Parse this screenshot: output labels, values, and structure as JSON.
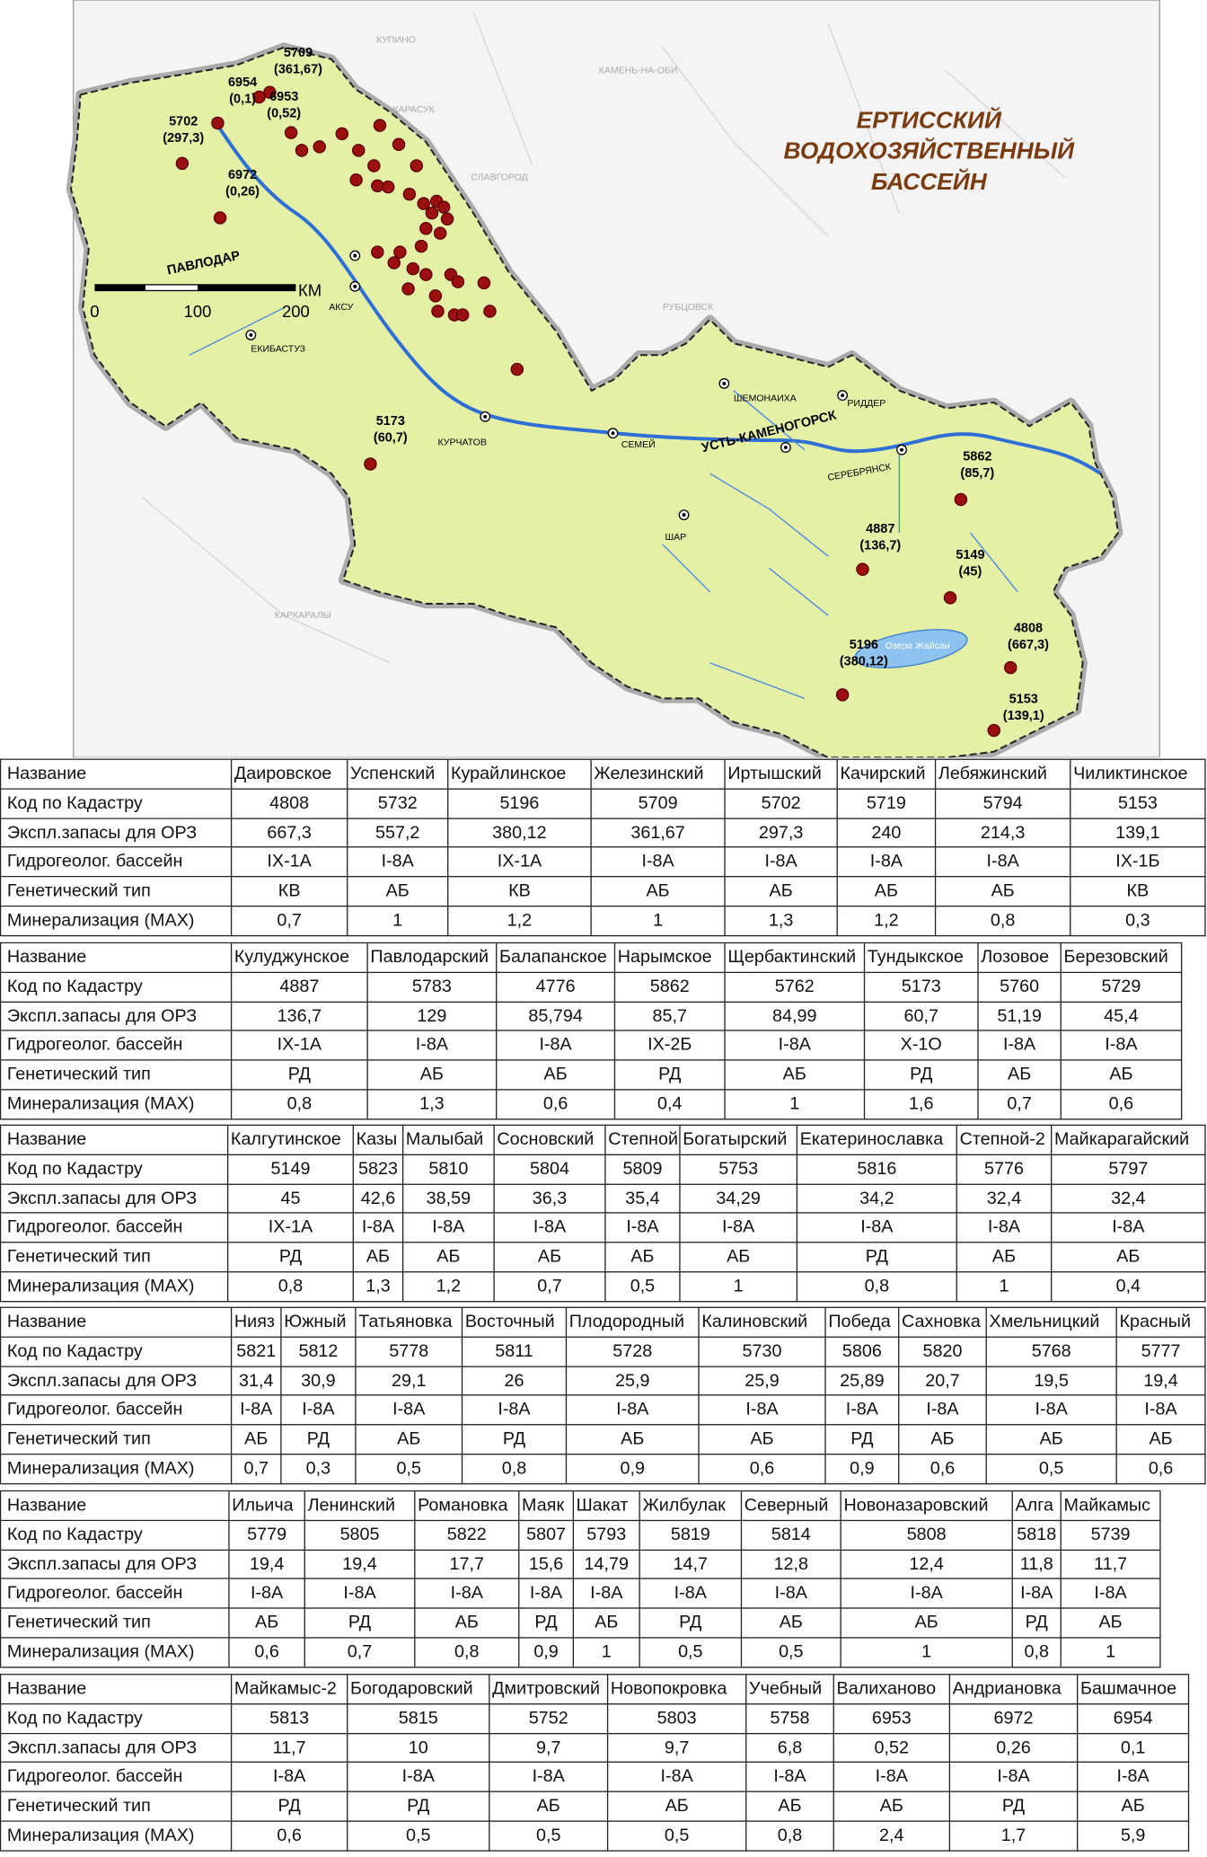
{
  "map": {
    "title": [
      "ЕРТИССКИЙ",
      "ВОДОХОЗЯЙСТВЕННЫЙ",
      "БАССЕЙН"
    ],
    "scale": {
      "ticks": [
        "0",
        "100",
        "200"
      ],
      "unit": "КМ"
    },
    "cities": [
      "ПАВЛОДАР",
      "АКСУ",
      "ЕКИБАСТУЗ",
      "КУРЧАТОВ",
      "СЕМЕЙ",
      "УСТЬ-КАМЕНОГОРСК",
      "ШАР",
      "ШЕМОНАИХА",
      "РИДДЕР",
      "СЕРЕБРЯНСК"
    ],
    "places": [
      "КУПИНО",
      "КАМЕНЬ-НА-ОБИ",
      "КАРАСУК",
      "СЛАВГОРОД",
      "РУБЦОВСК",
      "КАРКАРАЛЫ",
      "Озеро Жайсан"
    ],
    "wells": [
      {
        "code": "5709",
        "value": "(361,67)"
      },
      {
        "code": "6954",
        "value": "(0,1)"
      },
      {
        "code": "6953",
        "value": "(0,52)"
      },
      {
        "code": "5702",
        "value": "(297,3)"
      },
      {
        "code": "6972",
        "value": "(0,26)"
      },
      {
        "code": "5173",
        "value": "(60,7)"
      },
      {
        "code": "5862",
        "value": "(85,7)"
      },
      {
        "code": "4887",
        "value": "(136,7)"
      },
      {
        "code": "5149",
        "value": "(45)"
      },
      {
        "code": "4808",
        "value": "(667,3)"
      },
      {
        "code": "5196",
        "value": "(380,12)"
      },
      {
        "code": "5153",
        "value": "(139,1)"
      }
    ]
  },
  "tables": [
    {
      "rows": [
        [
          "Название",
          "Даировское",
          "Успенский",
          "Курайлинское",
          "Железинский",
          "Иртышский",
          "Качирский",
          "Лебяжинский",
          "Чиликтинское"
        ],
        [
          "Код по Кадастру",
          "4808",
          "5732",
          "5196",
          "5709",
          "5702",
          "5719",
          "5794",
          "5153"
        ],
        [
          "Экспл.запасы для ОРЗ",
          "667,3",
          "557,2",
          "380,12",
          "361,67",
          "297,3",
          "240",
          "214,3",
          "139,1"
        ],
        [
          "Гидрогеолог. бассейн",
          "IX-1А",
          "I-8А",
          "IX-1А",
          "I-8А",
          "I-8А",
          "I-8А",
          "I-8А",
          "IX-1Б"
        ],
        [
          "Генетический тип",
          "КВ",
          "АБ",
          "КВ",
          "АБ",
          "АБ",
          "АБ",
          "АБ",
          "КВ"
        ],
        [
          "Минерализация (MAX)",
          "0,7",
          "1",
          "1,2",
          "1",
          "1,3",
          "1,2",
          "0,8",
          "0,3"
        ]
      ]
    },
    {
      "rows": [
        [
          "Название",
          "Кулуджунское",
          "Павлодарский",
          "Балапанское",
          "Нарымское",
          "Щербактинский",
          "Тундыкское",
          "Лозовое",
          "Березовский"
        ],
        [
          "Код по Кадастру",
          "4887",
          "5783",
          "4776",
          "5862",
          "5762",
          "5173",
          "5760",
          "5729"
        ],
        [
          "Экспл.запасы для ОРЗ",
          "136,7",
          "129",
          "85,794",
          "85,7",
          "84,99",
          "60,7",
          "51,19",
          "45,4"
        ],
        [
          "Гидрогеолог. бассейн",
          "IX-1А",
          "I-8А",
          "I-8А",
          "IX-2Б",
          "I-8А",
          "X-1О",
          "I-8А",
          "I-8А"
        ],
        [
          "Генетический тип",
          "РД",
          "АБ",
          "АБ",
          "РД",
          "АБ",
          "РД",
          "АБ",
          "АБ"
        ],
        [
          "Минерализация (MAX)",
          "0,8",
          "1,3",
          "0,6",
          "0,4",
          "1",
          "1,6",
          "0,7",
          "0,6"
        ]
      ]
    },
    {
      "rows": [
        [
          "Название",
          "Калгутинское",
          "Казы",
          "Малыбай",
          "Сосновский",
          "Степной",
          "Богатырский",
          "Екатеринославка",
          "Степной-2",
          "Майкарагайский"
        ],
        [
          "Код по Кадастру",
          "5149",
          "5823",
          "5810",
          "5804",
          "5809",
          "5753",
          "5816",
          "5776",
          "5797"
        ],
        [
          "Экспл.запасы для ОРЗ",
          "45",
          "42,6",
          "38,59",
          "36,3",
          "35,4",
          "34,29",
          "34,2",
          "32,4",
          "32,4"
        ],
        [
          "Гидрогеолог. бассейн",
          "IX-1А",
          "I-8А",
          "I-8А",
          "I-8А",
          "I-8А",
          "I-8А",
          "I-8А",
          "I-8А",
          "I-8А"
        ],
        [
          "Генетический тип",
          "РД",
          "АБ",
          "АБ",
          "АБ",
          "АБ",
          "АБ",
          "РД",
          "АБ",
          "АБ"
        ],
        [
          "Минерализация (MAX)",
          "0,8",
          "1,3",
          "1,2",
          "0,7",
          "0,5",
          "1",
          "0,8",
          "1",
          "0,4"
        ]
      ]
    },
    {
      "rows": [
        [
          "Название",
          "Нияз",
          "Южный",
          "Татьяновка",
          "Восточный",
          "Плодородный",
          "Калиновский",
          "Победа",
          "Сахновка",
          "Хмельницкий",
          "Красный"
        ],
        [
          "Код по Кадастру",
          "5821",
          "5812",
          "5778",
          "5811",
          "5728",
          "5730",
          "5806",
          "5820",
          "5768",
          "5777"
        ],
        [
          "Экспл.запасы для ОРЗ",
          "31,4",
          "30,9",
          "29,1",
          "26",
          "25,9",
          "25,9",
          "25,89",
          "20,7",
          "19,5",
          "19,4"
        ],
        [
          "Гидрогеолог. бассейн",
          "I-8А",
          "I-8А",
          "I-8А",
          "I-8А",
          "I-8А",
          "I-8А",
          "I-8А",
          "I-8А",
          "I-8А",
          "I-8А"
        ],
        [
          "Генетический тип",
          "АБ",
          "РД",
          "АБ",
          "РД",
          "АБ",
          "АБ",
          "РД",
          "АБ",
          "АБ",
          "АБ"
        ],
        [
          "Минерализация (MAX)",
          "0,7",
          "0,3",
          "0,5",
          "0,8",
          "0,9",
          "0,6",
          "0,9",
          "0,6",
          "0,5",
          "0,6"
        ]
      ]
    },
    {
      "rows": [
        [
          "Название",
          "Ильича",
          "Ленинский",
          "Романовка",
          "Маяк",
          "Шакат",
          "Жилбулак",
          "Северный",
          "Новоназаровский",
          "Алга",
          "Майкамыс"
        ],
        [
          "Код по Кадастру",
          "5779",
          "5805",
          "5822",
          "5807",
          "5793",
          "5819",
          "5814",
          "5808",
          "5818",
          "5739"
        ],
        [
          "Экспл.запасы для ОРЗ",
          "19,4",
          "19,4",
          "17,7",
          "15,6",
          "14,79",
          "14,7",
          "12,8",
          "12,4",
          "11,8",
          "11,7"
        ],
        [
          "Гидрогеолог. бассейн",
          "I-8А",
          "I-8А",
          "I-8А",
          "I-8А",
          "I-8А",
          "I-8А",
          "I-8А",
          "I-8А",
          "I-8А",
          "I-8А"
        ],
        [
          "Генетический тип",
          "АБ",
          "РД",
          "АБ",
          "РД",
          "АБ",
          "РД",
          "АБ",
          "АБ",
          "РД",
          "АБ"
        ],
        [
          "Минерализация (MAX)",
          "0,6",
          "0,7",
          "0,8",
          "0,9",
          "1",
          "0,5",
          "0,5",
          "1",
          "0,8",
          "1"
        ]
      ]
    },
    {
      "rows": [
        [
          "Название",
          "Майкамыс-2",
          "Богодаровский",
          "Дмитровский",
          "Новопокровка",
          "Учебный",
          "Валиханово",
          "Андриановка",
          "Башмачное"
        ],
        [
          "Код по Кадастру",
          "5813",
          "5815",
          "5752",
          "5803",
          "5758",
          "6953",
          "6972",
          "6954"
        ],
        [
          "Экспл.запасы для ОРЗ",
          "11,7",
          "10",
          "9,7",
          "9,7",
          "6,8",
          "0,52",
          "0,26",
          "0,1"
        ],
        [
          "Гидрогеолог. бассейн",
          "I-8А",
          "I-8А",
          "I-8А",
          "I-8А",
          "I-8А",
          "I-8А",
          "I-8А",
          "I-8А"
        ],
        [
          "Генетический тип",
          "РД",
          "РД",
          "АБ",
          "АБ",
          "АБ",
          "АБ",
          "РД",
          "АБ"
        ],
        [
          "Минерализация (MAX)",
          "0,6",
          "0,5",
          "0,5",
          "0,5",
          "0,8",
          "2,4",
          "1,7",
          "5,9"
        ]
      ]
    }
  ]
}
